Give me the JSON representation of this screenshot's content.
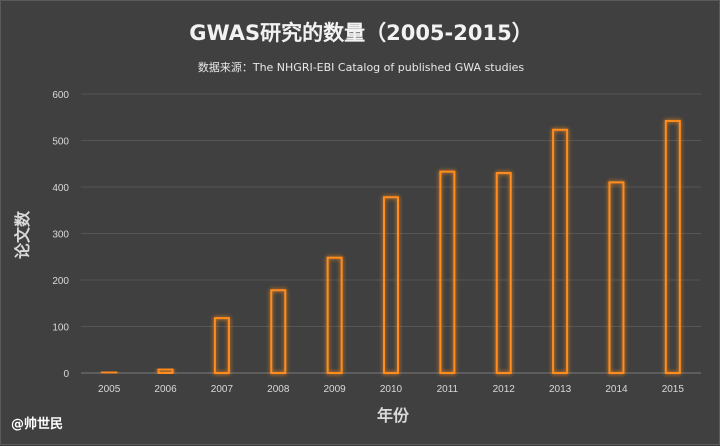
{
  "chart_data": {
    "type": "bar",
    "title": "GWAS研究的数量（2005-2015）",
    "subtitle": "数据来源：The NHGRI-EBI Catalog of published  GWA studies",
    "xlabel": "年份",
    "ylabel": "论文数",
    "categories": [
      "2005",
      "2006",
      "2007",
      "2008",
      "2009",
      "2010",
      "2011",
      "2012",
      "2013",
      "2014",
      "2015"
    ],
    "values": [
      2,
      8,
      118,
      178,
      248,
      378,
      433,
      430,
      523,
      410,
      542
    ],
    "ylim": [
      0,
      600
    ],
    "yticks": [
      "0",
      "100",
      "200",
      "300",
      "400",
      "500",
      "600"
    ],
    "grid": true,
    "bar_color": "#ff8c1a",
    "background": "#404040"
  },
  "watermark": "@帅世民"
}
